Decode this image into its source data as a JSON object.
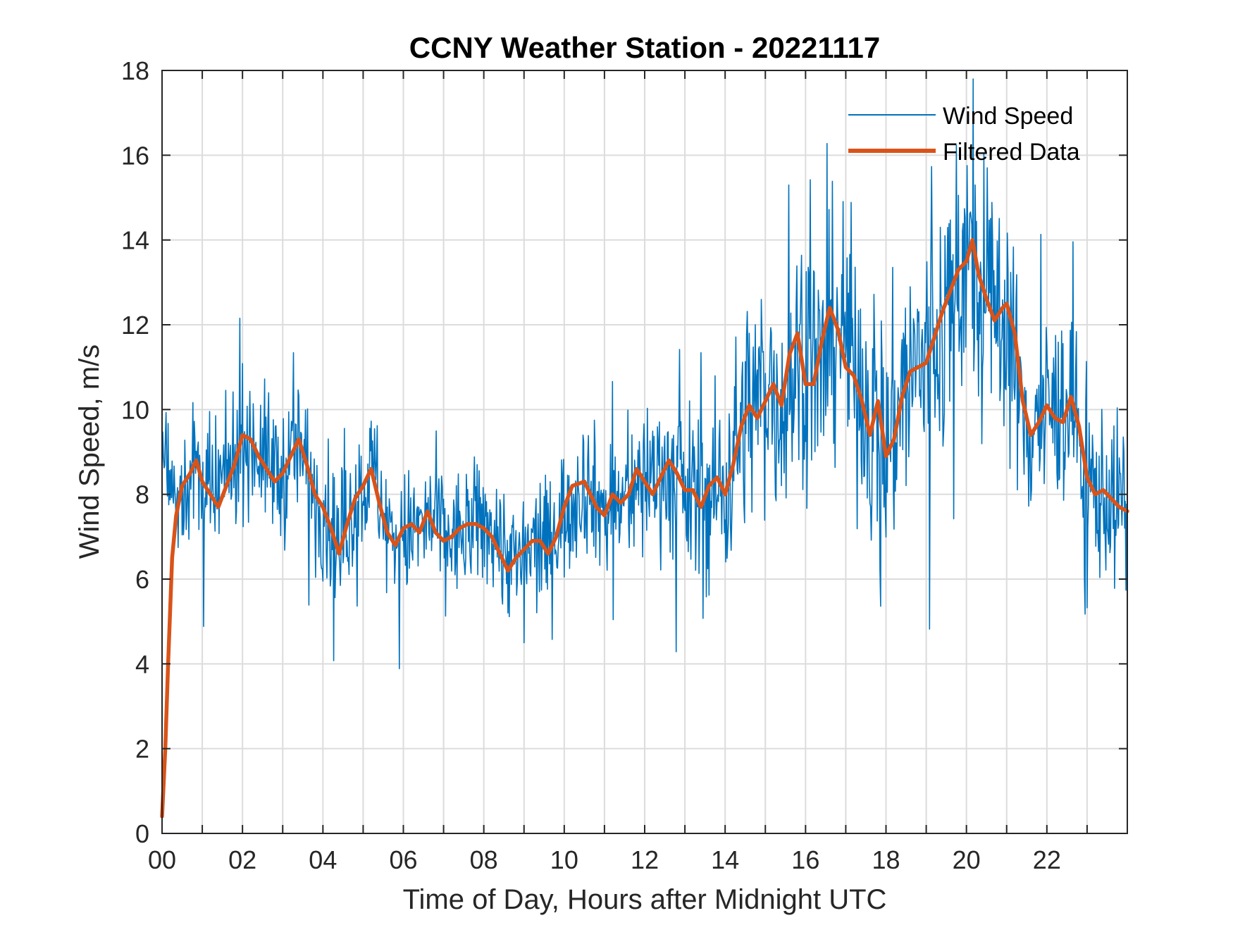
{
  "chart_data": {
    "type": "line",
    "title": "CCNY Weather Station - 20221117",
    "xlabel": "Time of Day, Hours after Midnight UTC",
    "ylabel": "Wind Speed, m/s",
    "xlim": [
      0,
      24
    ],
    "ylim": [
      0,
      18
    ],
    "grid": true,
    "legend_position": "top-right",
    "x_ticks": [
      0,
      2,
      4,
      6,
      8,
      10,
      12,
      14,
      16,
      18,
      20,
      22
    ],
    "x_tick_labels": [
      "00",
      "02",
      "04",
      "06",
      "08",
      "10",
      "12",
      "14",
      "16",
      "18",
      "20",
      "22"
    ],
    "y_ticks": [
      0,
      2,
      4,
      6,
      8,
      10,
      12,
      14,
      16,
      18
    ],
    "y_tick_labels": [
      "0",
      "2",
      "4",
      "6",
      "8",
      "10",
      "12",
      "14",
      "16",
      "18"
    ],
    "colors": {
      "raw": "#0072BD",
      "filtered": "#D95319",
      "grid": "#dcdcdc",
      "axis": "#262626"
    },
    "series": [
      {
        "name": "Wind Speed",
        "style": "thin",
        "noise_amplitude": [
          [
            0,
            1.2
          ],
          [
            3,
            1.3
          ],
          [
            6,
            1.2
          ],
          [
            9,
            1.2
          ],
          [
            12,
            1.3
          ],
          [
            14,
            2.0
          ],
          [
            16,
            2.4
          ],
          [
            18,
            2.4
          ],
          [
            20,
            2.6
          ],
          [
            22,
            1.8
          ],
          [
            24,
            1.5
          ]
        ],
        "x": [
          0,
          0.1,
          0.2,
          0.3,
          0.5,
          0.8,
          1.0,
          1.2,
          1.5,
          2.0,
          2.3,
          2.6,
          3.0,
          3.4,
          3.8,
          4.0,
          4.4,
          4.7,
          5.0,
          5.3,
          5.6,
          6.0,
          6.4,
          6.8,
          7.2,
          7.6,
          8.0,
          8.4,
          8.8,
          9.2,
          9.6,
          10.0,
          10.5,
          11.0,
          11.5,
          12.0,
          12.5,
          13.0,
          13.5,
          14.0,
          14.5,
          15.0,
          15.5,
          16.0,
          16.4,
          16.8,
          17.2,
          17.6,
          18.0,
          18.4,
          18.8,
          19.2,
          19.6,
          20.0,
          20.2,
          20.6,
          21.0,
          21.4,
          21.8,
          22.2,
          22.6,
          23.0,
          23.4,
          24.0
        ],
        "values": [
          8.5,
          9.0,
          8.3,
          8.0,
          8.2,
          8.6,
          8.3,
          7.8,
          8.2,
          9.3,
          9.2,
          8.8,
          8.4,
          9.2,
          8.0,
          7.7,
          6.8,
          7.6,
          8.3,
          8.5,
          7.1,
          7.0,
          7.2,
          7.4,
          6.9,
          7.2,
          7.3,
          7.0,
          6.3,
          6.7,
          6.8,
          7.6,
          8.3,
          7.6,
          7.8,
          8.5,
          8.6,
          8.0,
          7.9,
          8.2,
          9.9,
          10.5,
          10.2,
          11.8,
          10.6,
          12.3,
          11.0,
          10.2,
          9.0,
          10.4,
          11.0,
          11.5,
          12.5,
          13.8,
          12.6,
          12.3,
          12.4,
          9.6,
          9.8,
          10.0,
          10.2,
          8.2,
          8.0,
          7.7
        ]
      },
      {
        "name": "Filtered Data",
        "style": "thick",
        "x": [
          0,
          0.08,
          0.15,
          0.25,
          0.35,
          0.5,
          0.7,
          0.85,
          1.0,
          1.2,
          1.4,
          1.6,
          1.8,
          2.0,
          2.2,
          2.4,
          2.6,
          2.8,
          3.0,
          3.2,
          3.4,
          3.6,
          3.8,
          4.0,
          4.2,
          4.4,
          4.6,
          4.8,
          5.0,
          5.2,
          5.4,
          5.6,
          5.8,
          6.0,
          6.2,
          6.4,
          6.6,
          6.8,
          7.0,
          7.2,
          7.4,
          7.6,
          7.8,
          8.0,
          8.2,
          8.4,
          8.6,
          8.8,
          9.0,
          9.2,
          9.4,
          9.6,
          9.8,
          10.0,
          10.2,
          10.5,
          10.8,
          11.0,
          11.2,
          11.4,
          11.6,
          11.8,
          12.0,
          12.2,
          12.4,
          12.6,
          12.8,
          13.0,
          13.2,
          13.4,
          13.6,
          13.8,
          14.0,
          14.2,
          14.4,
          14.6,
          14.8,
          15.0,
          15.2,
          15.4,
          15.6,
          15.8,
          16.0,
          16.2,
          16.4,
          16.6,
          16.8,
          17.0,
          17.2,
          17.4,
          17.6,
          17.8,
          18.0,
          18.2,
          18.4,
          18.6,
          18.8,
          19.0,
          19.2,
          19.4,
          19.6,
          19.8,
          20.0,
          20.15,
          20.3,
          20.5,
          20.7,
          20.9,
          21.0,
          21.2,
          21.4,
          21.6,
          21.8,
          22.0,
          22.2,
          22.4,
          22.6,
          22.8,
          23.0,
          23.2,
          23.4,
          23.6,
          23.8,
          24.0
        ],
        "values": [
          0.4,
          2.0,
          4.0,
          6.5,
          7.5,
          8.2,
          8.5,
          8.8,
          8.3,
          8.0,
          7.7,
          8.2,
          8.7,
          9.4,
          9.3,
          8.9,
          8.6,
          8.3,
          8.5,
          8.9,
          9.3,
          8.7,
          8.0,
          7.7,
          7.2,
          6.6,
          7.3,
          7.9,
          8.2,
          8.6,
          7.8,
          7.1,
          6.8,
          7.2,
          7.3,
          7.1,
          7.6,
          7.1,
          6.9,
          7.0,
          7.2,
          7.3,
          7.3,
          7.2,
          7.0,
          6.6,
          6.2,
          6.5,
          6.7,
          6.9,
          6.9,
          6.6,
          7.0,
          7.7,
          8.2,
          8.3,
          7.7,
          7.5,
          8.0,
          7.8,
          8.0,
          8.6,
          8.3,
          8.0,
          8.4,
          8.8,
          8.5,
          8.1,
          8.1,
          7.7,
          8.2,
          8.4,
          8.0,
          8.7,
          9.6,
          10.1,
          9.8,
          10.2,
          10.6,
          10.1,
          11.3,
          11.8,
          10.6,
          10.6,
          11.6,
          12.4,
          11.9,
          11.0,
          10.8,
          10.2,
          9.4,
          10.2,
          8.9,
          9.3,
          10.3,
          10.9,
          11.0,
          11.1,
          11.7,
          12.3,
          12.8,
          13.3,
          13.5,
          14.0,
          13.2,
          12.6,
          12.1,
          12.4,
          12.5,
          11.8,
          10.2,
          9.4,
          9.7,
          10.1,
          9.8,
          9.7,
          10.3,
          9.6,
          8.4,
          8.0,
          8.1,
          7.9,
          7.7,
          7.6
        ]
      }
    ]
  }
}
